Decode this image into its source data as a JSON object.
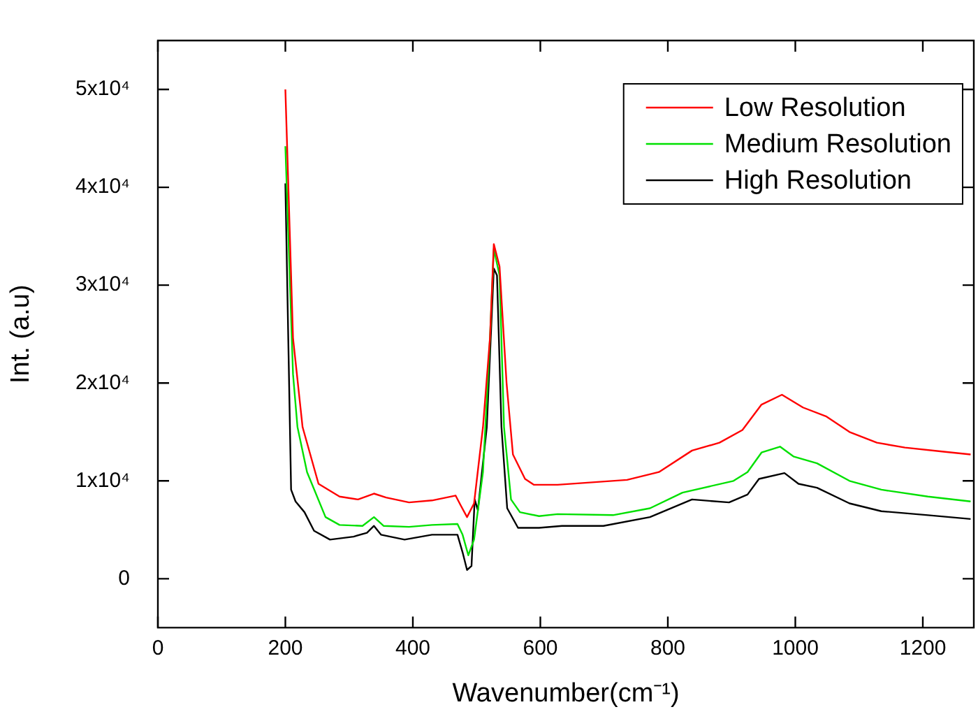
{
  "chart_data": {
    "type": "line",
    "xlabel": "Wavenumber(cm⁻¹)",
    "ylabel": "Int. (a.u)",
    "xlim": [
      0,
      1280
    ],
    "xticks": [
      0,
      200,
      400,
      600,
      800,
      1000,
      1200
    ],
    "ylim": [
      -5000,
      55000
    ],
    "yticks": [
      {
        "value": 0,
        "label": "0"
      },
      {
        "value": 10000,
        "label": "1x10⁴"
      },
      {
        "value": 20000,
        "label": "2x10⁴"
      },
      {
        "value": 30000,
        "label": "3x10⁴"
      },
      {
        "value": 40000,
        "label": "4x10⁴"
      },
      {
        "value": 50000,
        "label": "5x10⁴"
      }
    ],
    "grid": false,
    "legend": "top right",
    "marker": "none",
    "line_style": "solid",
    "series": [
      {
        "name": "Low Resolution",
        "color": "#ff0000",
        "x": [
          200,
          212,
          227,
          252,
          285,
          314,
          339,
          358,
          394,
          430,
          467,
          475,
          485,
          496,
          510,
          521,
          527,
          536,
          547,
          557,
          576,
          590,
          627,
          736,
          786,
          838,
          881,
          917,
          947,
          979,
          1012,
          1048,
          1085,
          1128,
          1172,
          1230,
          1275
        ],
        "values": [
          50000,
          24600,
          15500,
          9700,
          8400,
          8100,
          8700,
          8300,
          7800,
          8000,
          8500,
          7500,
          6300,
          7700,
          15500,
          24600,
          34200,
          31900,
          20000,
          12700,
          10200,
          9600,
          9600,
          10100,
          10900,
          13100,
          13900,
          15200,
          17800,
          18800,
          17500,
          16600,
          15000,
          13900,
          13400,
          13000,
          12700
        ]
      },
      {
        "name": "Medium Resolution",
        "color": "#00e000",
        "x": [
          200,
          212,
          219,
          234,
          263,
          285,
          321,
          339,
          354,
          394,
          430,
          470,
          478,
          487,
          496,
          510,
          521,
          527,
          536,
          543,
          554,
          568,
          598,
          627,
          714,
          772,
          823,
          903,
          925,
          947,
          976,
          997,
          1034,
          1085,
          1135,
          1208,
          1275
        ],
        "values": [
          44200,
          20900,
          15500,
          10900,
          6300,
          5500,
          5400,
          6300,
          5400,
          5300,
          5500,
          5600,
          4500,
          2400,
          4000,
          10900,
          24600,
          33700,
          31000,
          15500,
          8100,
          6800,
          6400,
          6600,
          6500,
          7200,
          8800,
          10000,
          10900,
          12900,
          13500,
          12500,
          11800,
          10000,
          9100,
          8400,
          7900
        ]
      },
      {
        "name": "High Resolution",
        "color": "#000000",
        "x": [
          200,
          209,
          216,
          230,
          245,
          270,
          307,
          328,
          339,
          350,
          387,
          430,
          470,
          478,
          485,
          492,
          497,
          502,
          516,
          527,
          532,
          539,
          548,
          565,
          598,
          634,
          699,
          772,
          838,
          896,
          925,
          943,
          983,
          1005,
          1034,
          1085,
          1135,
          1208,
          1275
        ],
        "values": [
          40400,
          9100,
          7900,
          6800,
          4900,
          4000,
          4300,
          4700,
          5400,
          4500,
          4000,
          4500,
          4500,
          2700,
          900,
          1300,
          8100,
          7000,
          15500,
          31700,
          31000,
          15500,
          7200,
          5200,
          5200,
          5400,
          5400,
          6300,
          8100,
          7800,
          8600,
          10200,
          10800,
          9700,
          9300,
          7700,
          6900,
          6500,
          6100
        ]
      }
    ]
  }
}
